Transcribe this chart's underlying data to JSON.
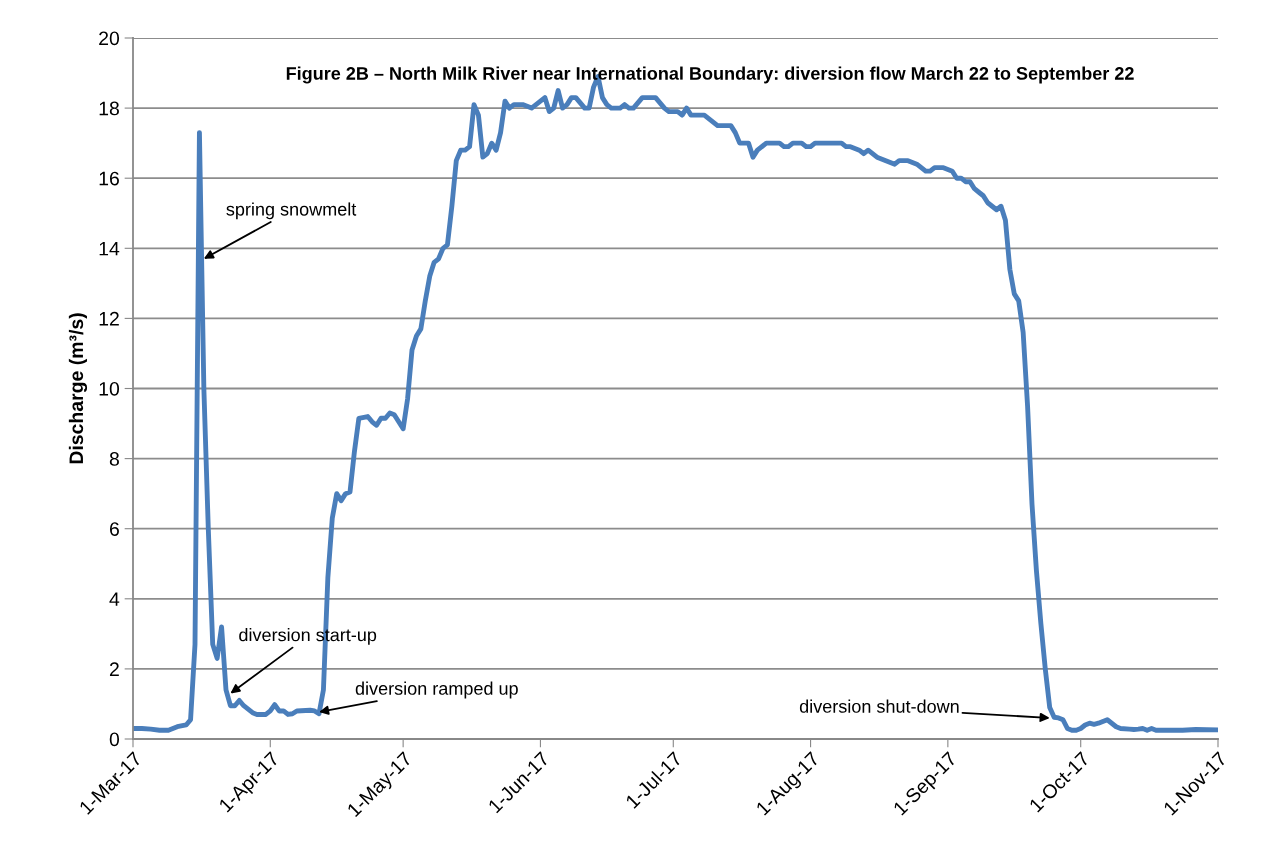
{
  "chart_data": {
    "type": "line",
    "title": "Figure 2B – North Milk River near International Boundary: diversion flow March 22 to September 22",
    "ylabel": "Discharge (m³/s)",
    "x": [
      "2017-03-01",
      "2017-03-03",
      "2017-03-05",
      "2017-03-07",
      "2017-03-09",
      "2017-03-11",
      "2017-03-13",
      "2017-03-14",
      "2017-03-15",
      "2017-03-16",
      "2017-03-17",
      "2017-03-18",
      "2017-03-19",
      "2017-03-20",
      "2017-03-21",
      "2017-03-22",
      "2017-03-23",
      "2017-03-24",
      "2017-03-25",
      "2017-03-26",
      "2017-03-27",
      "2017-03-28",
      "2017-03-29",
      "2017-03-31",
      "2017-04-01",
      "2017-04-02",
      "2017-04-03",
      "2017-04-04",
      "2017-04-05",
      "2017-04-06",
      "2017-04-07",
      "2017-04-10",
      "2017-04-11",
      "2017-04-12",
      "2017-04-13",
      "2017-04-14",
      "2017-04-15",
      "2017-04-16",
      "2017-04-17",
      "2017-04-18",
      "2017-04-19",
      "2017-04-20",
      "2017-04-21",
      "2017-04-23",
      "2017-04-24",
      "2017-04-25",
      "2017-04-26",
      "2017-04-27",
      "2017-04-28",
      "2017-04-29",
      "2017-04-30",
      "2017-05-01",
      "2017-05-02",
      "2017-05-03",
      "2017-05-04",
      "2017-05-05",
      "2017-05-06",
      "2017-05-07",
      "2017-05-08",
      "2017-05-09",
      "2017-05-10",
      "2017-05-11",
      "2017-05-12",
      "2017-05-13",
      "2017-05-14",
      "2017-05-15",
      "2017-05-16",
      "2017-05-17",
      "2017-05-18",
      "2017-05-19",
      "2017-05-20",
      "2017-05-21",
      "2017-05-22",
      "2017-05-23",
      "2017-05-24",
      "2017-05-25",
      "2017-05-26",
      "2017-05-28",
      "2017-05-30",
      "2017-06-01",
      "2017-06-02",
      "2017-06-03",
      "2017-06-04",
      "2017-06-05",
      "2017-06-06",
      "2017-06-07",
      "2017-06-08",
      "2017-06-09",
      "2017-06-11",
      "2017-06-12",
      "2017-06-13",
      "2017-06-14",
      "2017-06-15",
      "2017-06-16",
      "2017-06-17",
      "2017-06-19",
      "2017-06-20",
      "2017-06-21",
      "2017-06-22",
      "2017-06-24",
      "2017-06-27",
      "2017-06-29",
      "2017-06-30",
      "2017-07-02",
      "2017-07-03",
      "2017-07-04",
      "2017-07-05",
      "2017-07-08",
      "2017-07-11",
      "2017-07-14",
      "2017-07-15",
      "2017-07-16",
      "2017-07-18",
      "2017-07-19",
      "2017-07-20",
      "2017-07-22",
      "2017-07-25",
      "2017-07-26",
      "2017-07-27",
      "2017-07-28",
      "2017-07-30",
      "2017-07-31",
      "2017-08-01",
      "2017-08-02",
      "2017-08-08",
      "2017-08-09",
      "2017-08-10",
      "2017-08-12",
      "2017-08-13",
      "2017-08-14",
      "2017-08-16",
      "2017-08-18",
      "2017-08-20",
      "2017-08-21",
      "2017-08-23",
      "2017-08-25",
      "2017-08-27",
      "2017-08-28",
      "2017-08-29",
      "2017-08-31",
      "2017-09-02",
      "2017-09-03",
      "2017-09-04",
      "2017-09-05",
      "2017-09-06",
      "2017-09-07",
      "2017-09-08",
      "2017-09-09",
      "2017-09-10",
      "2017-09-11",
      "2017-09-12",
      "2017-09-13",
      "2017-09-14",
      "2017-09-15",
      "2017-09-16",
      "2017-09-17",
      "2017-09-18",
      "2017-09-19",
      "2017-09-20",
      "2017-09-21",
      "2017-09-22",
      "2017-09-23",
      "2017-09-24",
      "2017-09-25",
      "2017-09-26",
      "2017-09-27",
      "2017-09-28",
      "2017-09-29",
      "2017-09-30",
      "2017-10-01",
      "2017-10-02",
      "2017-10-03",
      "2017-10-04",
      "2017-10-05",
      "2017-10-06",
      "2017-10-07",
      "2017-10-08",
      "2017-10-09",
      "2017-10-10",
      "2017-10-12",
      "2017-10-13",
      "2017-10-14",
      "2017-10-15",
      "2017-10-16",
      "2017-10-17",
      "2017-10-18",
      "2017-10-22",
      "2017-10-24",
      "2017-10-27",
      "2017-11-01"
    ],
    "series": [
      {
        "color": "#4a7ebb",
        "values": [
          0.3,
          0.3,
          0.28,
          0.25,
          0.25,
          0.35,
          0.4,
          0.55,
          2.7,
          17.3,
          10,
          6,
          2.7,
          2.3,
          3.2,
          1.4,
          0.95,
          0.95,
          1.1,
          0.95,
          0.85,
          0.75,
          0.7,
          0.7,
          0.8,
          0.98,
          0.8,
          0.8,
          0.7,
          0.72,
          0.8,
          0.82,
          0.8,
          0.72,
          1.4,
          4.6,
          6.3,
          7.0,
          6.8,
          7.0,
          7.05,
          8.2,
          9.15,
          9.2,
          9.05,
          8.95,
          9.15,
          9.15,
          9.3,
          9.25,
          9.05,
          8.85,
          9.7,
          11.1,
          11.5,
          11.7,
          12.5,
          13.2,
          13.6,
          13.7,
          14.0,
          14.1,
          15.2,
          16.5,
          16.8,
          16.8,
          16.9,
          18.1,
          17.8,
          16.6,
          16.7,
          17.0,
          16.8,
          17.3,
          18.2,
          18.0,
          18.1,
          18.1,
          18.0,
          18.2,
          18.3,
          17.9,
          18.0,
          18.5,
          18.0,
          18.1,
          18.3,
          18.3,
          18.0,
          18.0,
          18.6,
          18.9,
          18.3,
          18.1,
          18.0,
          18.0,
          18.1,
          18.0,
          18.0,
          18.3,
          18.3,
          18.0,
          17.9,
          17.9,
          17.8,
          18.0,
          17.8,
          17.8,
          17.5,
          17.5,
          17.3,
          17.0,
          17.0,
          16.6,
          16.8,
          17.0,
          17.0,
          16.9,
          16.9,
          17.0,
          17.0,
          16.9,
          16.9,
          17.0,
          17.0,
          16.9,
          16.9,
          16.8,
          16.7,
          16.8,
          16.6,
          16.5,
          16.4,
          16.5,
          16.5,
          16.4,
          16.2,
          16.2,
          16.3,
          16.3,
          16.2,
          16.0,
          16.0,
          15.9,
          15.9,
          15.7,
          15.6,
          15.5,
          15.3,
          15.2,
          15.1,
          15.2,
          14.8,
          13.4,
          12.7,
          12.5,
          11.6,
          9.5,
          6.7,
          4.8,
          3.3,
          2.0,
          0.9,
          0.62,
          0.6,
          0.55,
          0.3,
          0.25,
          0.25,
          0.3,
          0.4,
          0.45,
          0.42,
          0.45,
          0.5,
          0.55,
          0.45,
          0.35,
          0.3,
          0.28,
          0.27,
          0.28,
          0.3,
          0.25,
          0.3,
          0.25,
          0.25,
          0.25,
          0.27,
          0.26
        ]
      }
    ],
    "xlim": [
      "2017-03-01",
      "2017-11-01"
    ],
    "xticks": [
      {
        "value": "2017-03-01",
        "label": "1-Mar-17"
      },
      {
        "value": "2017-04-01",
        "label": "1-Apr-17"
      },
      {
        "value": "2017-05-01",
        "label": "1-May-17"
      },
      {
        "value": "2017-06-01",
        "label": "1-Jun-17"
      },
      {
        "value": "2017-07-01",
        "label": "1-Jul-17"
      },
      {
        "value": "2017-08-01",
        "label": "1-Aug-17"
      },
      {
        "value": "2017-09-01",
        "label": "1-Sep-17"
      },
      {
        "value": "2017-10-01",
        "label": "1-Oct-17"
      },
      {
        "value": "2017-11-01",
        "label": "1-Nov-17"
      }
    ],
    "ylim": [
      0,
      20
    ],
    "yticks": [
      0,
      2,
      4,
      6,
      8,
      10,
      12,
      14,
      16,
      18,
      20
    ],
    "grid": "y",
    "marker": "none",
    "line_style": "solid",
    "annotations": [
      {
        "text": "spring snowmelt",
        "x": "2017-03-17",
        "y": 13.7
      },
      {
        "text": "diversion start-up",
        "x": "2017-03-23",
        "y": 1.3
      },
      {
        "text": "diversion ramped up",
        "x": "2017-04-12",
        "y": 0.77
      },
      {
        "text": "diversion shut-down",
        "x": "2017-09-24",
        "y": 0.6
      }
    ]
  }
}
